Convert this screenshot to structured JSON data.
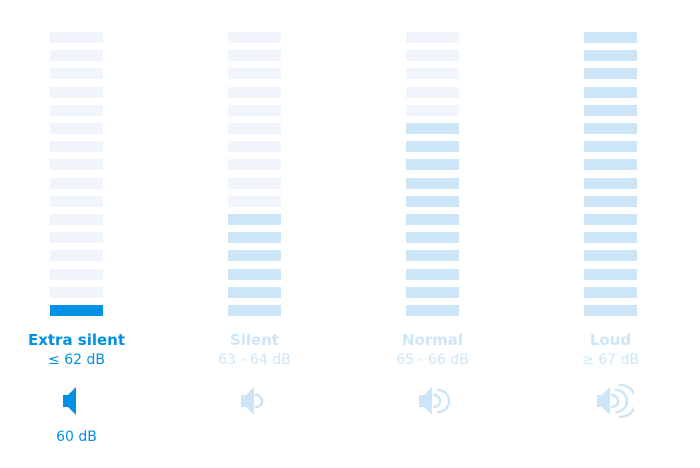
{
  "total_segments": 16,
  "colors": {
    "active": "#0091E6",
    "filled": "#CCE6F8",
    "empty": "#EFF5FB",
    "inactive_text": "#CDE7F8"
  },
  "levels": [
    {
      "label": "Extra silent",
      "range": "≤ 62 dB",
      "filled_segments": 1,
      "selected": true,
      "icon": "speaker-mute-icon",
      "waves": 0,
      "current_value": "60 dB"
    },
    {
      "label": "Silent",
      "range": "63 - 64 dB",
      "filled_segments": 6,
      "selected": false,
      "icon": "speaker-low-icon",
      "waves": 1
    },
    {
      "label": "Normal",
      "range": "65 - 66 dB",
      "filled_segments": 11,
      "selected": false,
      "icon": "speaker-medium-icon",
      "waves": 2
    },
    {
      "label": "Loud",
      "range": "≥ 67 dB",
      "filled_segments": 16,
      "selected": false,
      "icon": "speaker-high-icon",
      "waves": 3
    }
  ]
}
